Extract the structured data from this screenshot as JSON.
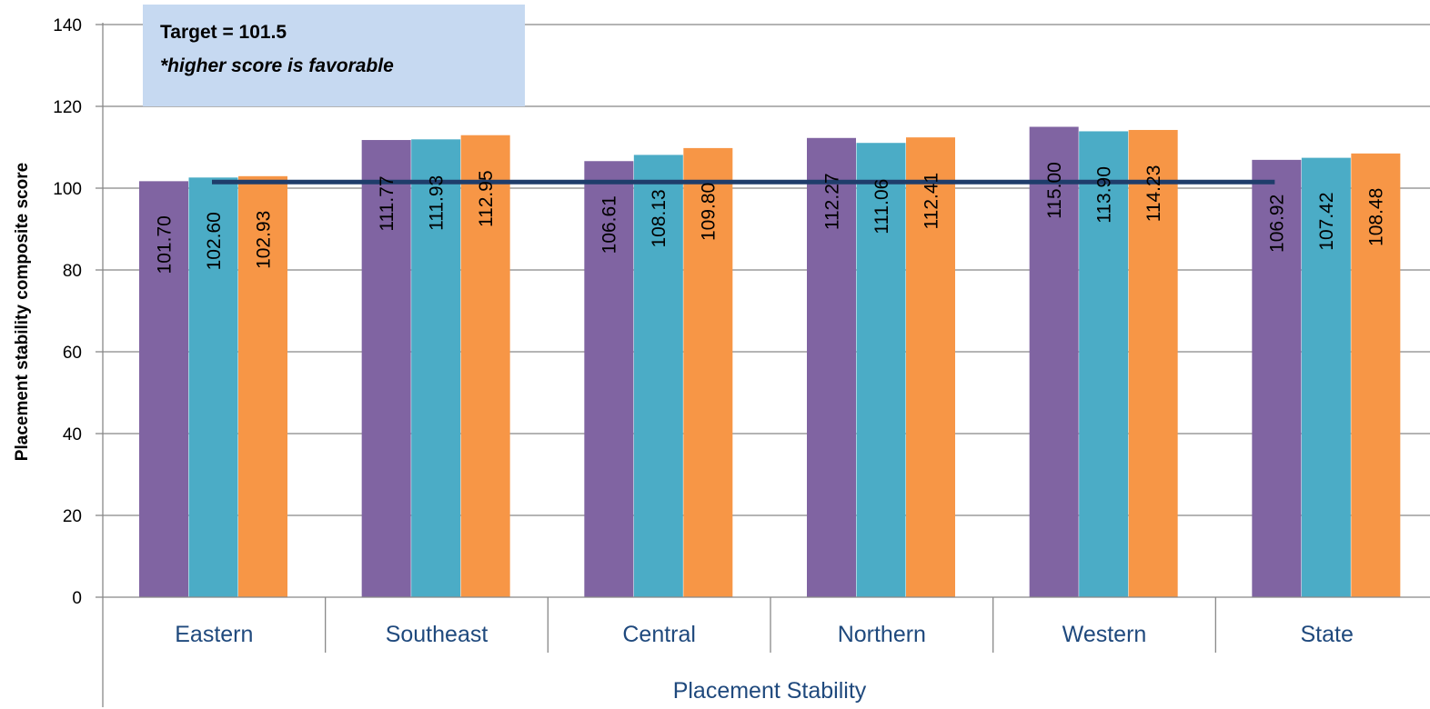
{
  "chart_data": {
    "type": "bar",
    "xlabel": "Placement Stability",
    "ylabel": "Placement stability composite score",
    "ylim": [
      0,
      140
    ],
    "yticks": [
      0,
      20,
      40,
      60,
      80,
      100,
      120,
      140
    ],
    "grid": true,
    "categories": [
      "Eastern",
      "Southeast",
      "Central",
      "Northern",
      "Western",
      "State"
    ],
    "series": [
      {
        "values": [
          101.7,
          111.77,
          106.61,
          112.27,
          115.0,
          106.92
        ],
        "color": "#8064a2"
      },
      {
        "values": [
          102.6,
          111.93,
          108.13,
          111.06,
          113.9,
          107.42
        ],
        "color": "#4bacc6"
      },
      {
        "values": [
          102.93,
          112.95,
          109.8,
          112.41,
          114.23,
          108.48
        ],
        "color": "#f79646"
      }
    ],
    "data_labels": [
      [
        "101.70",
        "102.60",
        "102.93"
      ],
      [
        "111.77",
        "111.93",
        "112.95"
      ],
      [
        "106.61",
        "108.13",
        "109.80"
      ],
      [
        "112.27",
        "111.06",
        "112.41"
      ],
      [
        "115.00",
        "113.90",
        "114.23"
      ],
      [
        "106.92",
        "107.42",
        "108.48"
      ]
    ],
    "target": {
      "value": 101.5,
      "color": "#1f3d6b"
    },
    "annotation": {
      "line1": "Target = 101.5",
      "line2": "*higher score is favorable",
      "background": "#c6d9f1"
    }
  }
}
